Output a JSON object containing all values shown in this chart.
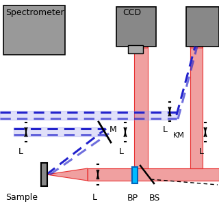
{
  "bg_color": "#ffffff",
  "red_color": "#e83030",
  "red_fill": "#f0a0a0",
  "blue_color": "#2222cc",
  "blue_fill": "#9999ee",
  "gray_box": "#909090",
  "gray_sample": "#888888",
  "cyan_color": "#00bbff",
  "black": "#000000",
  "spec_label1": "Spectrometer",
  "ccd_label": "CCD",
  "sample_label": "Sample",
  "bp_label": "BP",
  "bs_label": "BS",
  "l_label": "L",
  "m_label": "M",
  "km_label": "KM",
  "fig_w": 3.2,
  "fig_h": 3.2,
  "dpi": 100
}
